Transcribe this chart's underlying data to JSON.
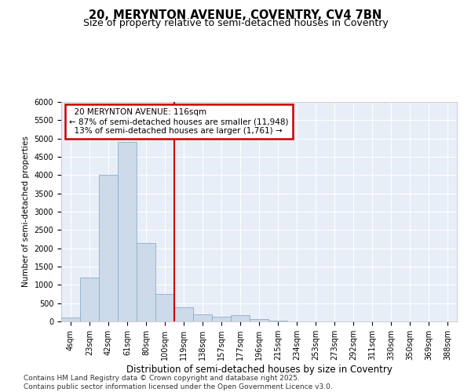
{
  "title1": "20, MERYNTON AVENUE, COVENTRY, CV4 7BN",
  "title2": "Size of property relative to semi-detached houses in Coventry",
  "xlabel": "Distribution of semi-detached houses by size in Coventry",
  "ylabel": "Number of semi-detached properties",
  "property_label": "20 MERYNTON AVENUE: 116sqm",
  "pct_smaller": 87,
  "n_smaller": 11948,
  "pct_larger": 13,
  "n_larger": 1761,
  "bar_categories": [
    "4sqm",
    "23sqm",
    "42sqm",
    "61sqm",
    "80sqm",
    "100sqm",
    "119sqm",
    "138sqm",
    "157sqm",
    "177sqm",
    "196sqm",
    "215sqm",
    "234sqm",
    "253sqm",
    "273sqm",
    "292sqm",
    "311sqm",
    "330sqm",
    "350sqm",
    "369sqm",
    "388sqm"
  ],
  "bar_values": [
    100,
    1200,
    4000,
    4900,
    2150,
    750,
    380,
    200,
    130,
    170,
    60,
    20,
    5,
    0,
    0,
    0,
    0,
    0,
    0,
    0,
    0
  ],
  "bar_color": "#ccdaea",
  "bar_edge_color": "#8aaec8",
  "vline_color": "#cc0000",
  "annotation_box_color": "#cc0000",
  "ylim": [
    0,
    6000
  ],
  "yticks": [
    0,
    500,
    1000,
    1500,
    2000,
    2500,
    3000,
    3500,
    4000,
    4500,
    5000,
    5500,
    6000
  ],
  "bg_color": "#e8eef8",
  "grid_color": "#ffffff",
  "footer": "Contains HM Land Registry data © Crown copyright and database right 2025.\nContains public sector information licensed under the Open Government Licence v3.0.",
  "title1_fontsize": 10.5,
  "title2_fontsize": 9,
  "xlabel_fontsize": 8.5,
  "ylabel_fontsize": 7.5,
  "tick_fontsize": 7,
  "annotation_fontsize": 7.5,
  "footer_fontsize": 6.5
}
